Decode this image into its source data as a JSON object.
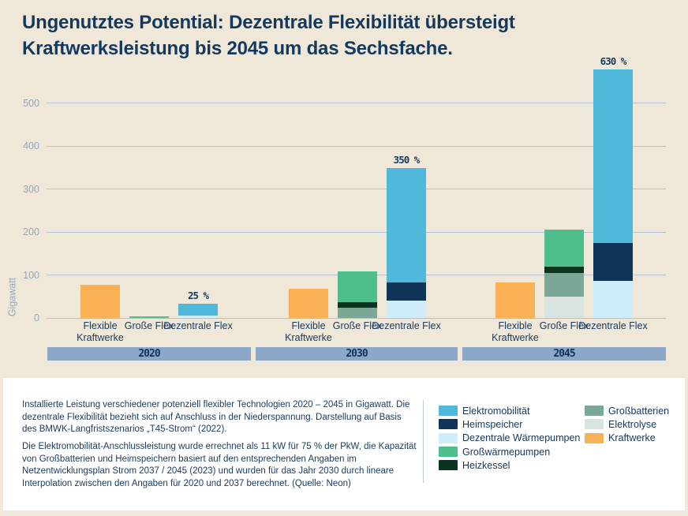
{
  "title": {
    "emphasis": "Ungenutztes Potential:",
    "rest_line1": " Dezentrale Flexibilität übersteigt",
    "rest_line2": "Kraftwerksleistung bis 2045 um das Sechsfache."
  },
  "colors": {
    "background": "#EFE7D8",
    "title_text": "#14395E",
    "axis_text": "#97A5BF",
    "gridline": "#B5C2D8",
    "year_band": "#8CA7C7",
    "year_band_text": "#12325A",
    "footnote_text": "#1E3C63",
    "panel": "#FFFFFF"
  },
  "chart_data": {
    "type": "bar",
    "stacked": true,
    "unit": "Gigawatt",
    "ylabel": "Gigawatt",
    "ylim": [
      0,
      560
    ],
    "yticks": [
      0,
      100,
      200,
      300,
      400,
      500
    ],
    "grid": true,
    "series_colors": {
      "Elektromobilität": "#4FB8DB",
      "Heimspeicher": "#0F3558",
      "Dezentrale Wärmepumpen": "#CFEDFA",
      "Großwärmepumpen": "#4EBF8C",
      "Heizkessel": "#0B331D",
      "Großbatterien": "#7AA895",
      "Elektrolyse": "#D9E4DE",
      "Kraftwerke": "#F9B153"
    },
    "groups": [
      {
        "year": "2020",
        "bars": [
          {
            "label": "Flexible Kraftwerke",
            "segments": [
              {
                "name": "Kraftwerke",
                "value": 77
              }
            ]
          },
          {
            "label": "Große Flex",
            "segments": [
              {
                "name": "Großwärmepumpen",
                "value": 3
              }
            ]
          },
          {
            "label": "Dezentrale Flex",
            "annotation": "25 %",
            "segments": [
              {
                "name": "Dezentrale Wärmepumpen",
                "value": 6
              },
              {
                "name": "Elektromobilität",
                "value": 27
              }
            ]
          }
        ]
      },
      {
        "year": "2030",
        "bars": [
          {
            "label": "Flexible Kraftwerke",
            "segments": [
              {
                "name": "Kraftwerke",
                "value": 68
              }
            ]
          },
          {
            "label": "Große Flex",
            "segments": [
              {
                "name": "Großbatterien",
                "value": 24
              },
              {
                "name": "Heizkessel",
                "value": 13
              },
              {
                "name": "Großwärmepumpen",
                "value": 72
              }
            ]
          },
          {
            "label": "Dezentrale Flex",
            "annotation": "350 %",
            "segments": [
              {
                "name": "Dezentrale Wärmepumpen",
                "value": 40
              },
              {
                "name": "Heimspeicher",
                "value": 42
              },
              {
                "name": "Elektromobilität",
                "value": 266
              }
            ]
          }
        ]
      },
      {
        "year": "2045",
        "bars": [
          {
            "label": "Flexible Kraftwerke",
            "segments": [
              {
                "name": "Kraftwerke",
                "value": 83
              }
            ]
          },
          {
            "label": "Große Flex",
            "segments": [
              {
                "name": "Elektrolyse",
                "value": 50
              },
              {
                "name": "Großbatterien",
                "value": 55
              },
              {
                "name": "Heizkessel",
                "value": 14
              },
              {
                "name": "Großwärmepumpen",
                "value": 87
              }
            ]
          },
          {
            "label": "Dezentrale Flex",
            "annotation": "630 %",
            "segments": [
              {
                "name": "Dezentrale Wärmepumpen",
                "value": 86
              },
              {
                "name": "Heimspeicher",
                "value": 88
              },
              {
                "name": "Elektromobilität",
                "value": 404
              }
            ]
          }
        ]
      }
    ]
  },
  "legend": {
    "column1": [
      "Elektromobilität",
      "Heimspeicher",
      "Dezentrale Wärmepumpen",
      "Großwärmepumpen",
      "Heizkessel"
    ],
    "column2": [
      "Großbatterien",
      "Elektrolyse",
      "Kraftwerke"
    ]
  },
  "footnotes": [
    "Installierte Leistung verschiedener potenziell flexibler Technologien 2020 – 2045 in Gigawatt. Die dezentrale Flexibilität bezieht sich auf Anschluss in der Niederspannung. Darstellung auf Basis des BMWK-Langfristszenarios „T45-Strom“ (2022).",
    "Die Elektromobilität-Anschlussleistung wurde errechnet als 11 kW für 75 % der PkW, die Kapazität von Großbatterien und Heimspeichern basiert auf den entsprechenden Angaben im Netzentwicklungsplan Strom 2037 / 2045 (2023) und wurden für das Jahr 2030 durch lineare Interpolation zwischen den Angaben für 2020 und 2037 berechnet. (Quelle: Neon)"
  ]
}
